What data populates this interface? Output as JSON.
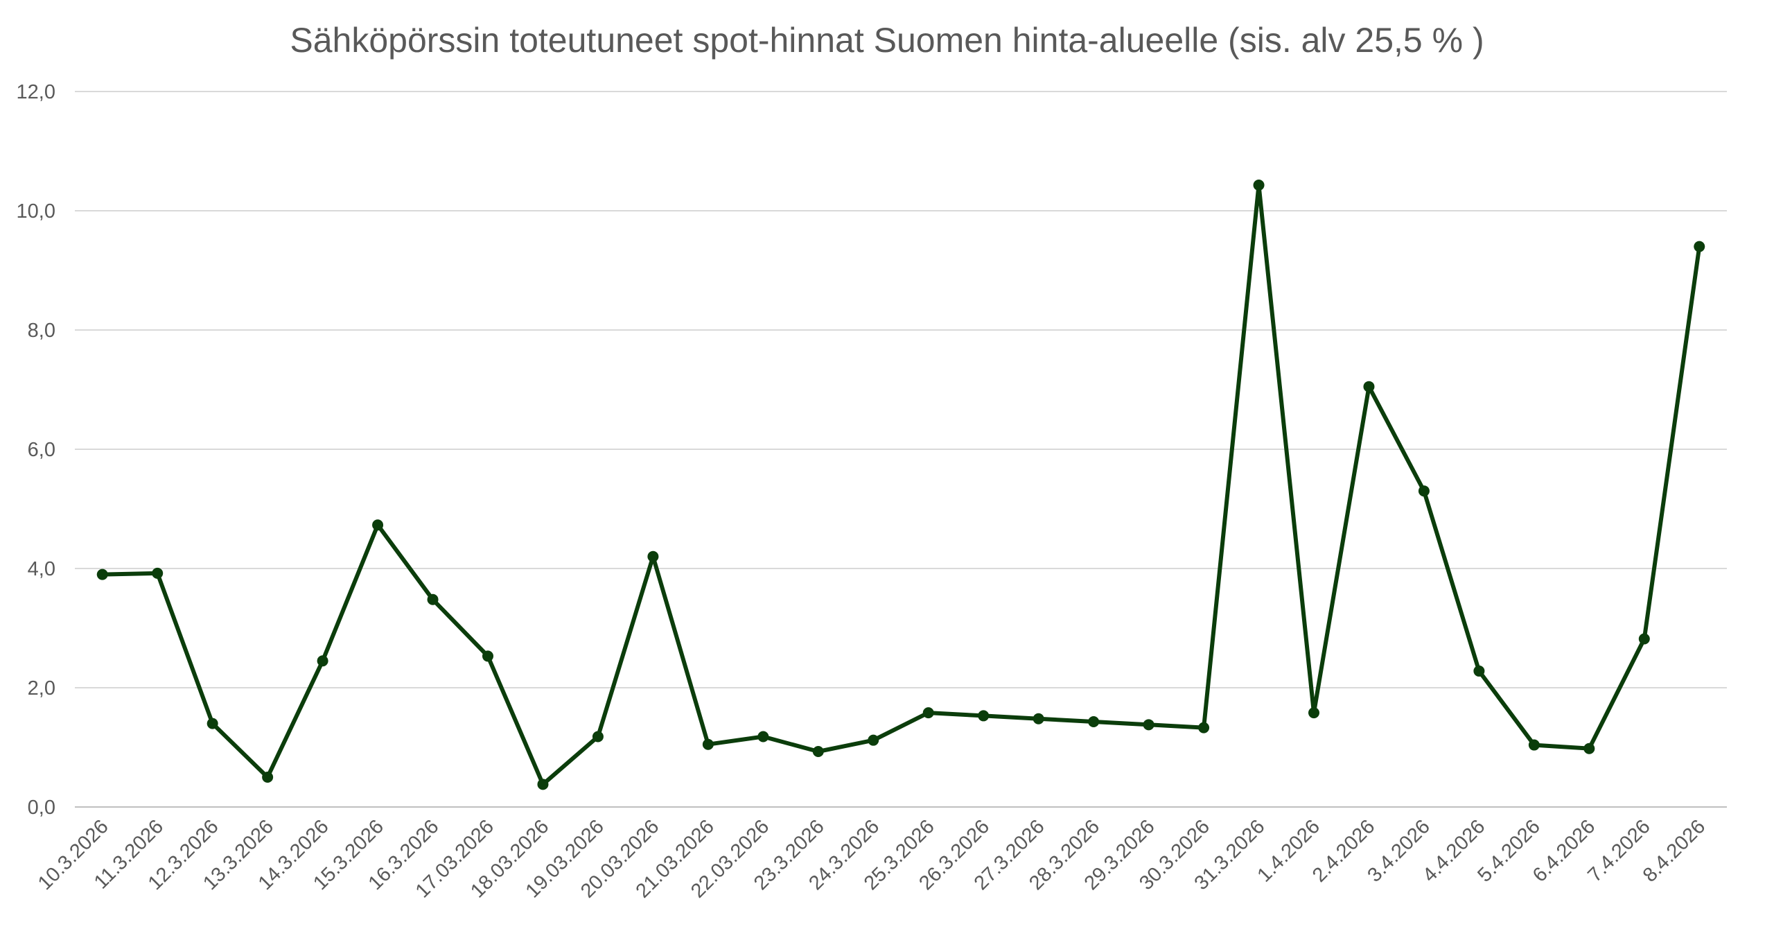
{
  "chart_data": {
    "type": "line",
    "title": "Sähköpörssin toteutuneet spot-hinnat Suomen hinta-alueelle (sis. alv 25,5 % )",
    "xlabel": "",
    "ylabel": "",
    "ylim": [
      0,
      12
    ],
    "y_ticks": [
      "0,0",
      "2,0",
      "4,0",
      "6,0",
      "8,0",
      "10,0",
      "12,0"
    ],
    "grid": true,
    "legend": "none",
    "categories": [
      "10.3.2026",
      "11.3.2026",
      "12.3.2026",
      "13.3.2026",
      "14.3.2026",
      "15.3.2026",
      "16.3.2026",
      "17.03.2026",
      "18.03.2026",
      "19.03.2026",
      "20.03.2026",
      "21.03.2026",
      "22.03.2026",
      "23.3.2026",
      "24.3.2026",
      "25.3.2026",
      "26.3.2026",
      "27.3.2026",
      "28.3.2026",
      "29.3.2026",
      "30.3.2026",
      "31.3.2026",
      "1.4.2026",
      "2.4.2026",
      "3.4.2026",
      "4.4.2026",
      "5.4.2026",
      "6.4.2026",
      "7.4.2026",
      "8.4.2026"
    ],
    "series": [
      {
        "color": "#0b3d0b",
        "values": [
          3.9,
          3.92,
          1.4,
          0.5,
          2.45,
          4.73,
          3.48,
          2.53,
          0.38,
          1.18,
          4.2,
          1.05,
          1.18,
          0.93,
          1.12,
          1.58,
          1.53,
          1.48,
          1.43,
          1.38,
          1.33,
          10.43,
          1.58,
          7.05,
          5.3,
          2.28,
          1.04,
          0.98,
          2.82,
          9.4
        ]
      }
    ]
  }
}
